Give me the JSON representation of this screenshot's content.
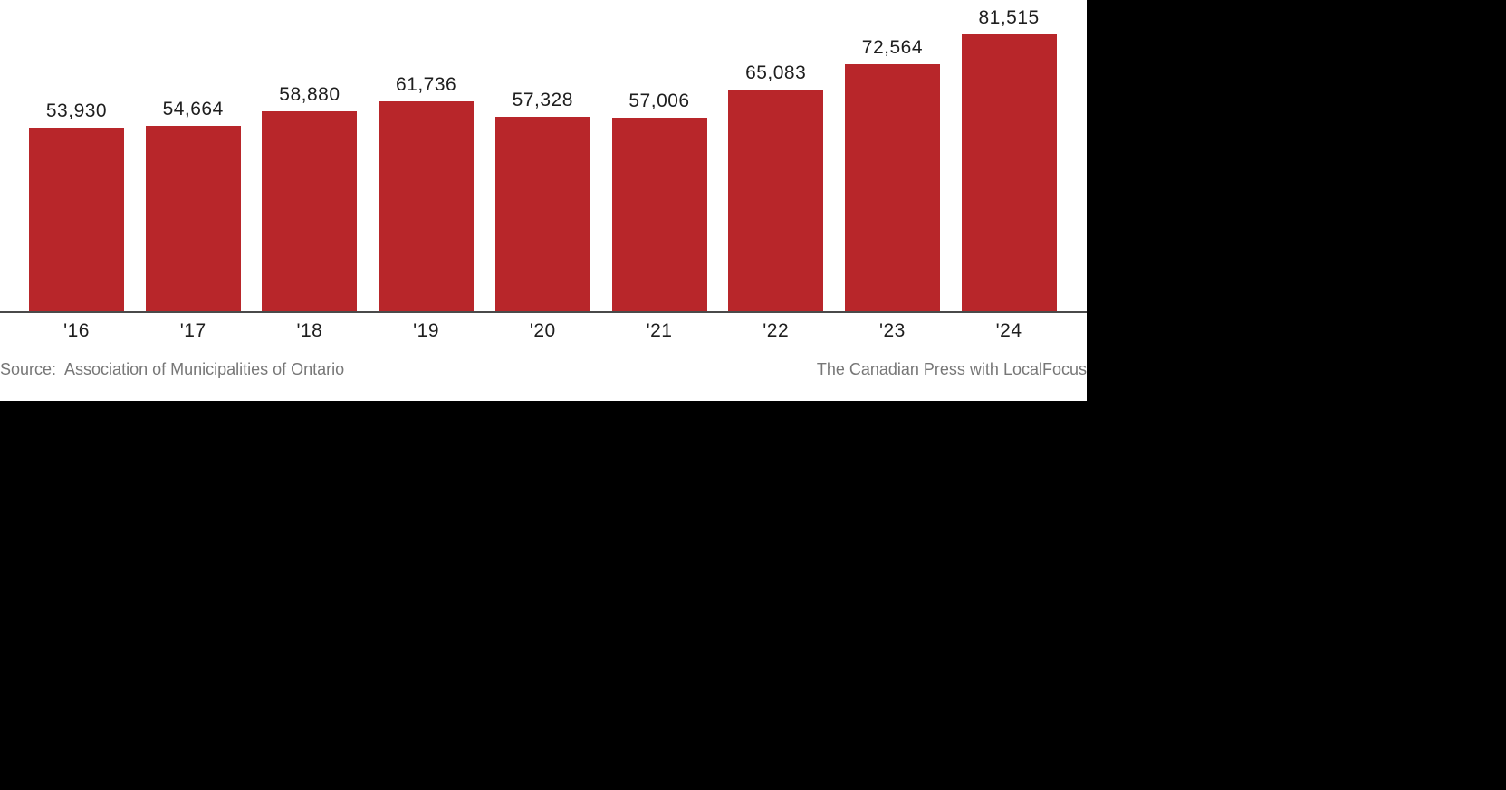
{
  "chart_data": {
    "type": "bar",
    "title": "",
    "xlabel": "",
    "ylabel": "",
    "categories": [
      "'16",
      "'17",
      "'18",
      "'19",
      "'20",
      "'21",
      "'22",
      "'23",
      "'24"
    ],
    "values": [
      53930,
      54664,
      58880,
      61736,
      57328,
      57006,
      65083,
      72564,
      81515
    ],
    "value_labels": [
      "53,930",
      "54,664",
      "58,880",
      "61,736",
      "57,328",
      "57,006",
      "65,083",
      "72,564",
      "81,515"
    ],
    "ylim": [
      0,
      82000
    ],
    "grid": false,
    "legend": null,
    "bar_color": "#b8262a",
    "source": "Source:  Association of Municipalities of Ontario",
    "credit": "The Canadian Press with LocalFocus"
  },
  "footer": {
    "source": "Source:  Association of Municipalities of Ontario",
    "credit": "The Canadian Press with LocalFocus"
  }
}
